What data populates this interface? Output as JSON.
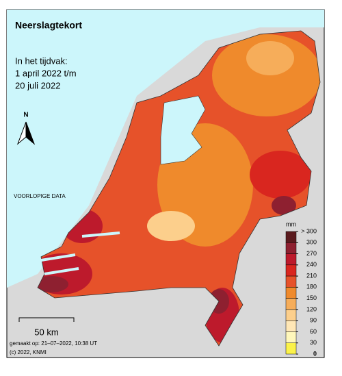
{
  "map": {
    "title": "Neerslagtekort",
    "period": [
      "In het tijdvak:",
      "1 april 2022 t/m",
      "20 juli 2022"
    ],
    "north": "N",
    "status": "VOORLOPIGE DATA",
    "scale_bar": "50 km",
    "footer": [
      "gemaakt op: 21–07–2022, 10:38 UT",
      "(c) 2022, KNMI"
    ],
    "legend": {
      "unit": "mm",
      "ticks": [
        {
          "value": 300,
          "label": "> 300"
        },
        300,
        270,
        240,
        210,
        180,
        150,
        120,
        90,
        60,
        30,
        0
      ],
      "colors": [
        "#5a1a1e",
        "#8e2030",
        "#bd1a2c",
        "#d9261f",
        "#e6522a",
        "#ef8a2c",
        "#f6ad5a",
        "#fccf8c",
        "#ffe7b6",
        "#fff7bb",
        "#fbf24a"
      ]
    }
  }
}
